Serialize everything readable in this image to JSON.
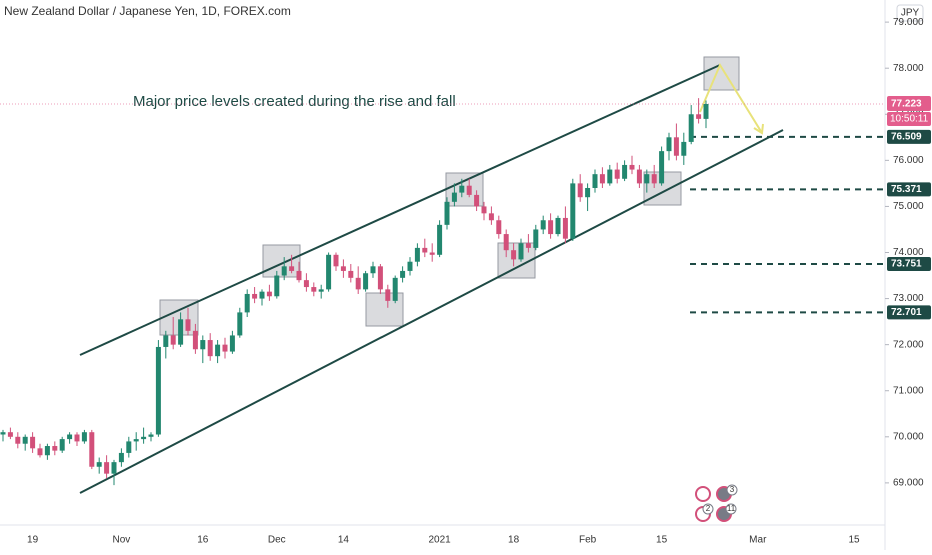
{
  "chart_data": {
    "type": "candlestick",
    "title": "New Zealand Dollar / Japanese Yen, 1D, FOREX.com",
    "currency": "JPY",
    "annotation": "Major price levels created during the rise and fall",
    "categories": [
      null,
      null,
      null,
      null,
      "19",
      null,
      null,
      null,
      null,
      null,
      null,
      null,
      null,
      null,
      null,
      null,
      "Nov",
      null,
      null,
      null,
      null,
      null,
      null,
      null,
      null,
      null,
      null,
      "16",
      null,
      null,
      null,
      null,
      null,
      null,
      null,
      null,
      null,
      "Dec",
      null,
      null,
      null,
      null,
      null,
      null,
      null,
      null,
      "14",
      null,
      null,
      null,
      null,
      null,
      null,
      null,
      null,
      null,
      null,
      null,
      null,
      "2021",
      null,
      null,
      null,
      null,
      null,
      null,
      null,
      null,
      null,
      "18",
      null,
      null,
      null,
      null,
      null,
      null,
      null,
      null,
      null,
      "Feb",
      null,
      null,
      null,
      null,
      null,
      null,
      null,
      null,
      null,
      "15",
      null,
      null,
      null,
      null,
      null,
      null,
      null,
      null,
      null,
      null,
      null,
      null,
      "Mar",
      null,
      null,
      null,
      null,
      null,
      null,
      null,
      null,
      null,
      null,
      null,
      null,
      "15",
      null,
      null
    ],
    "open": [
      70.05,
      70.1,
      70.0,
      69.85,
      70.0,
      69.75,
      69.6,
      69.8,
      69.7,
      69.95,
      70.05,
      69.9,
      70.1,
      69.35,
      69.45,
      69.2,
      69.45,
      69.65,
      69.9,
      69.95,
      70.0,
      70.05,
      71.95,
      72.2,
      72.0,
      72.55,
      72.3,
      71.9,
      72.1,
      71.75,
      72.0,
      71.85,
      72.2,
      72.7,
      73.1,
      73.0,
      73.15,
      73.05,
      73.5,
      73.7,
      73.6,
      73.4,
      73.25,
      73.15,
      73.2,
      73.95,
      73.7,
      73.6,
      73.45,
      73.2,
      73.55,
      73.7,
      73.2,
      72.95,
      73.45,
      73.6,
      73.8,
      74.1,
      74.0,
      73.95,
      74.6,
      75.1,
      75.3,
      75.45,
      75.25,
      75.0,
      74.85,
      74.7,
      74.4,
      74.05,
      73.85,
      74.2,
      74.1,
      74.5,
      74.7,
      74.4,
      74.75,
      74.3,
      75.5,
      75.2,
      75.4,
      75.7,
      75.5,
      75.8,
      75.6,
      75.9,
      75.8,
      75.5,
      75.7,
      75.5,
      76.2,
      76.5,
      76.1,
      76.4,
      77.0,
      76.9,
      null,
      null,
      null,
      null,
      null,
      null,
      null,
      null,
      null,
      null,
      null,
      null,
      null,
      null,
      null,
      null,
      null,
      null,
      null,
      null,
      null,
      null
    ],
    "high": [
      70.15,
      70.2,
      70.1,
      70.05,
      70.1,
      69.85,
      69.85,
      69.9,
      70.0,
      70.1,
      70.1,
      70.15,
      70.15,
      69.55,
      69.6,
      69.5,
      69.75,
      70.0,
      70.1,
      70.2,
      70.1,
      72.1,
      72.3,
      72.6,
      72.7,
      72.8,
      72.45,
      72.2,
      72.25,
      72.1,
      72.15,
      72.3,
      72.8,
      73.2,
      73.25,
      73.2,
      73.3,
      73.6,
      73.9,
      73.95,
      73.8,
      73.55,
      73.35,
      73.3,
      74.0,
      74.0,
      73.85,
      73.75,
      73.7,
      73.6,
      73.8,
      73.75,
      73.3,
      73.5,
      73.7,
      73.9,
      74.2,
      74.3,
      74.2,
      74.7,
      75.2,
      75.5,
      75.6,
      75.6,
      75.35,
      75.1,
      75.0,
      74.8,
      74.5,
      74.2,
      74.3,
      74.4,
      74.6,
      74.8,
      74.85,
      74.8,
      75.0,
      75.6,
      75.7,
      75.5,
      75.8,
      75.85,
      75.9,
      75.95,
      76.0,
      76.1,
      75.9,
      75.8,
      75.9,
      76.3,
      76.6,
      76.8,
      76.6,
      77.2,
      77.35,
      77.3,
      null,
      null,
      null,
      null,
      null,
      null,
      null,
      null,
      null,
      null,
      null,
      null,
      null,
      null,
      null,
      null,
      null,
      null,
      null,
      null,
      null,
      null
    ],
    "low": [
      69.9,
      69.95,
      69.75,
      69.7,
      69.65,
      69.55,
      69.5,
      69.6,
      69.65,
      69.85,
      69.8,
      69.85,
      69.3,
      69.2,
      69.1,
      68.95,
      69.35,
      69.55,
      69.7,
      69.85,
      69.9,
      70.0,
      71.7,
      71.9,
      71.95,
      72.2,
      71.8,
      71.6,
      71.65,
      71.6,
      71.7,
      71.8,
      72.15,
      72.6,
      72.9,
      72.85,
      72.95,
      73.0,
      73.4,
      73.55,
      73.35,
      73.15,
      73.05,
      73.0,
      73.15,
      73.6,
      73.45,
      73.35,
      73.1,
      73.15,
      73.45,
      73.1,
      72.8,
      72.9,
      73.35,
      73.5,
      73.7,
      73.9,
      73.8,
      73.9,
      74.5,
      75.0,
      75.2,
      75.2,
      74.9,
      74.7,
      74.6,
      74.3,
      73.9,
      73.7,
      73.8,
      74.0,
      74.05,
      74.4,
      74.3,
      74.35,
      74.2,
      74.25,
      75.1,
      74.9,
      75.3,
      75.4,
      75.45,
      75.5,
      75.55,
      75.7,
      75.4,
      75.3,
      75.4,
      75.45,
      76.0,
      76.0,
      75.9,
      76.35,
      76.8,
      76.7,
      null,
      null,
      null,
      null,
      null,
      null,
      null,
      null,
      null,
      null,
      null,
      null,
      null,
      null,
      null,
      null,
      null,
      null,
      null,
      null,
      null,
      null
    ],
    "close": [
      70.1,
      70.0,
      69.85,
      70.0,
      69.75,
      69.6,
      69.8,
      69.7,
      69.95,
      70.05,
      69.9,
      70.1,
      69.35,
      69.45,
      69.2,
      69.45,
      69.65,
      69.9,
      69.95,
      70.0,
      70.05,
      71.95,
      72.2,
      72.0,
      72.55,
      72.3,
      71.9,
      72.1,
      71.75,
      72.0,
      71.85,
      72.2,
      72.7,
      73.1,
      73.0,
      73.15,
      73.05,
      73.5,
      73.7,
      73.6,
      73.4,
      73.25,
      73.15,
      73.2,
      73.95,
      73.7,
      73.6,
      73.45,
      73.2,
      73.55,
      73.7,
      73.2,
      72.95,
      73.45,
      73.6,
      73.8,
      74.1,
      74.0,
      73.95,
      74.6,
      75.1,
      75.3,
      75.45,
      75.25,
      75.0,
      74.85,
      74.7,
      74.4,
      74.05,
      73.85,
      74.2,
      74.1,
      74.5,
      74.7,
      74.4,
      74.75,
      74.3,
      75.5,
      75.2,
      75.4,
      75.7,
      75.5,
      75.8,
      75.6,
      75.9,
      75.8,
      75.5,
      75.7,
      75.5,
      76.2,
      76.5,
      76.1,
      76.4,
      77.0,
      76.9,
      77.223,
      null,
      null,
      null,
      null,
      null,
      null,
      null,
      null,
      null,
      null,
      null,
      null,
      null,
      null,
      null,
      null,
      null,
      null,
      null,
      null,
      null,
      null
    ],
    "up_color": "#22876f",
    "down_color": "#d2507a",
    "ylim": [
      68.52,
      79.48
    ],
    "yticks": [
      {
        "value": 69,
        "label": "69.000"
      },
      {
        "value": 70,
        "label": "70.000"
      },
      {
        "value": 71,
        "label": "71.000"
      },
      {
        "value": 72,
        "label": "72.000"
      },
      {
        "value": 73,
        "label": "73.000"
      },
      {
        "value": 74,
        "label": "74.000"
      },
      {
        "value": 75,
        "label": "75.000"
      },
      {
        "value": 76,
        "label": "76.000"
      },
      {
        "value": 77,
        "label": "77.000"
      },
      {
        "value": 78,
        "label": "78.000"
      },
      {
        "value": 79,
        "label": "79.000"
      }
    ],
    "levels": [
      76.509,
      75.371,
      73.751,
      72.701
    ],
    "level_color": "#1e4a45",
    "last_price": 77.223,
    "last_price_color": "#e35d8c",
    "countdown": "10:50:11",
    "events": [
      "3",
      "2",
      "11"
    ]
  }
}
